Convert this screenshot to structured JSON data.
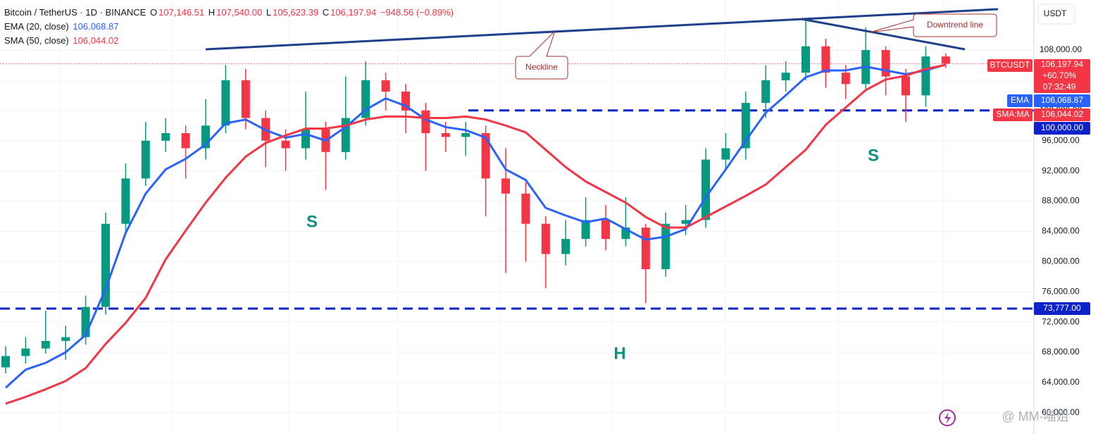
{
  "chart_data": {
    "type": "candlestick",
    "symbol": "Bitcoin / TetherUS · 1D · BINANCE",
    "ohlc_prefixes": [
      "O",
      "H",
      "L",
      "C"
    ],
    "ohlc_labels": {
      "open": "107,146.51",
      "high": "107,540.00",
      "low": "105,623.39",
      "close": "106,197.94"
    },
    "change_label": "−948.56 (−0.89%)",
    "currency": "USDT",
    "symbol_tag": "BTCUSDT",
    "change_pct_label": "+60.70%",
    "countdown": "07:32:49",
    "up_color": "#089981",
    "down_color": "#f23645",
    "open": [
      66000,
      67500,
      68500,
      69500,
      70000,
      74000,
      85000,
      91000,
      96000,
      97000,
      95000,
      98000,
      104000,
      99000,
      96000,
      95000,
      97500,
      94500,
      99000,
      104000,
      102500,
      100000,
      97000,
      96500,
      97000,
      91000,
      89000,
      85000,
      81000,
      83000,
      85500,
      83000,
      84500,
      79000,
      85000,
      85500,
      93500,
      95000,
      101000,
      104000,
      105000,
      108500,
      105000,
      103500,
      108000,
      104500,
      102000,
      107146.51
    ],
    "high": [
      68800,
      70000,
      73500,
      71500,
      75500,
      86500,
      93000,
      98500,
      99000,
      98000,
      101500,
      106000,
      105500,
      100000,
      97500,
      102500,
      98500,
      104500,
      106500,
      105000,
      103500,
      101000,
      98500,
      98500,
      98000,
      95000,
      90500,
      86000,
      85500,
      88500,
      87500,
      88500,
      85000,
      86500,
      87500,
      95000,
      97000,
      102500,
      106000,
      106500,
      112000,
      109500,
      106000,
      111000,
      108500,
      105500,
      108500,
      107540
    ],
    "low": [
      65200,
      66500,
      67800,
      67000,
      69000,
      73000,
      84000,
      90000,
      94500,
      91000,
      93500,
      97000,
      97500,
      92500,
      92000,
      93500,
      89500,
      93500,
      98000,
      100000,
      97000,
      92000,
      94500,
      94000,
      86000,
      78500,
      80000,
      76500,
      79500,
      82000,
      81500,
      82000,
      74500,
      78000,
      83500,
      84500,
      92000,
      93500,
      99000,
      102500,
      104000,
      103000,
      101500,
      102500,
      102000,
      98500,
      100500,
      105623.39
    ],
    "close": [
      67500,
      68500,
      69500,
      70000,
      74000,
      85000,
      91000,
      96000,
      97000,
      95000,
      98000,
      104000,
      99000,
      96000,
      95000,
      97500,
      94500,
      99000,
      104000,
      102500,
      100000,
      97000,
      96500,
      97000,
      91000,
      89000,
      85000,
      81000,
      83000,
      85500,
      83000,
      84500,
      79000,
      85000,
      85500,
      93500,
      95000,
      101000,
      104000,
      105000,
      108500,
      105000,
      103500,
      108000,
      104500,
      102000,
      107146.51,
      106197.94
    ],
    "series": [
      {
        "name": "EMA (20, close)",
        "tag": "EMA",
        "color": "#2962ff",
        "last_label": "106,068.87",
        "values": [
          63300,
          65700,
          66600,
          68000,
          70300,
          76400,
          83800,
          89000,
          92200,
          93600,
          95500,
          98300,
          98800,
          97400,
          96400,
          96900,
          96000,
          97800,
          100100,
          101600,
          100600,
          98800,
          97800,
          97400,
          96400,
          92200,
          90800,
          87100,
          86100,
          85200,
          85700,
          84300,
          82900,
          83300,
          84300,
          88500,
          92200,
          96000,
          99700,
          102000,
          104400,
          105300,
          105300,
          105800,
          105300,
          104800,
          105300,
          106068.87
        ]
      },
      {
        "name": "SMA (50, close)",
        "tag": "SMA:MA",
        "color": "#f23645",
        "last_label": "106,044.02",
        "values": [
          61200,
          62100,
          63100,
          64200,
          65900,
          69100,
          71900,
          75200,
          80300,
          84100,
          87800,
          91100,
          93900,
          95700,
          96700,
          97600,
          97600,
          98000,
          98800,
          99200,
          99200,
          99000,
          99000,
          99200,
          98800,
          98000,
          97100,
          94800,
          92500,
          90600,
          89200,
          87800,
          85900,
          84500,
          84500,
          85900,
          87300,
          88700,
          90200,
          92500,
          94800,
          98100,
          100400,
          102700,
          104100,
          104600,
          105500,
          106044.02
        ]
      }
    ],
    "levels": [
      {
        "value": 100000,
        "label": "100,000.00"
      },
      {
        "value": 73777,
        "label": "73,777.00"
      }
    ],
    "level_color": "#0d22c8",
    "ylim": [
      57184,
      114620
    ],
    "yticks": [
      {
        "value": 60000,
        "label": "60,000.00"
      },
      {
        "value": 64000,
        "label": "64,000.00"
      },
      {
        "value": 68000,
        "label": "68,000.00"
      },
      {
        "value": 72000,
        "label": "72,000.00"
      },
      {
        "value": 76000,
        "label": "76,000.00"
      },
      {
        "value": 80000,
        "label": "80,000.00"
      },
      {
        "value": 84000,
        "label": "84,000.00"
      },
      {
        "value": 88000,
        "label": "88,000.00"
      },
      {
        "value": 92000,
        "label": "92,000.00"
      },
      {
        "value": 96000,
        "label": "96,000.00"
      },
      {
        "value": 100000,
        "label": "100,000.00"
      },
      {
        "value": 104000,
        "label": "104,000.00"
      },
      {
        "value": 108000,
        "label": "108,000.00"
      }
    ],
    "grid": true,
    "annotations": {
      "neckline": "Neckline",
      "downtrend": "Downtrend line",
      "left_shoulder": "S",
      "head": "H",
      "right_shoulder": "S"
    },
    "watermark": "@ MM-喵姐"
  }
}
